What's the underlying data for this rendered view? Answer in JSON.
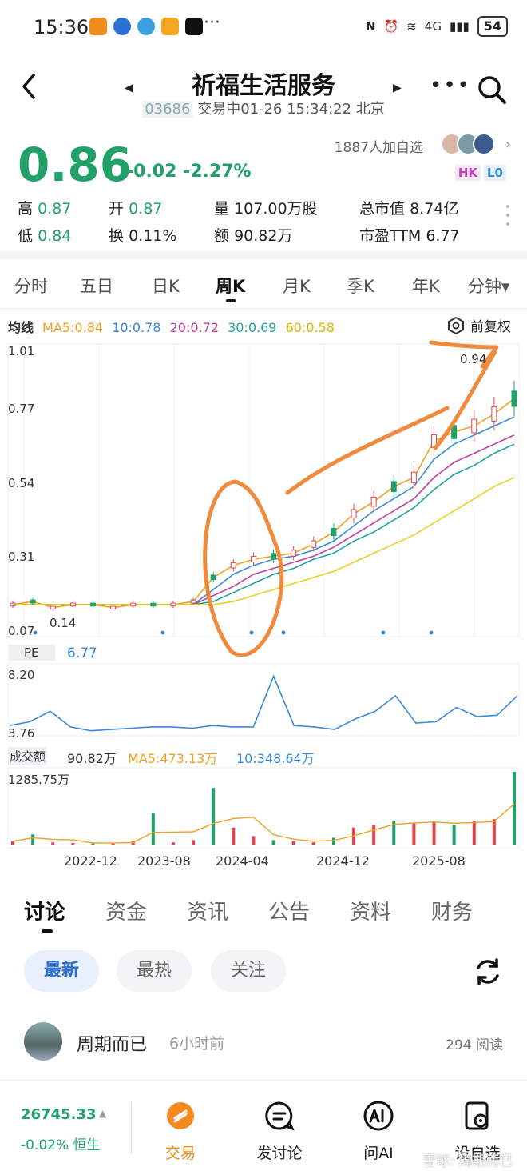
{
  "status_bar": {
    "time": "15:36",
    "network": "4G",
    "battery": "54"
  },
  "header": {
    "title": "祈福生活服务",
    "code": "03686",
    "status_text": "交易中01-26 15:34:22 北京"
  },
  "quote": {
    "price": "0.86",
    "change": "-0.02",
    "change_pct": "-2.27%",
    "watchers": "1887人加自选",
    "tags": [
      "HK",
      "L0"
    ],
    "stats": {
      "high_label": "高",
      "high": "0.87",
      "open_label": "开",
      "open": "0.87",
      "volume_label": "量",
      "volume": "107.00万股",
      "mcap_label": "总市值",
      "mcap": "8.74亿",
      "low_label": "低",
      "low": "0.84",
      "turnover_label": "换",
      "turnover": "0.11%",
      "amount_label": "额",
      "amount": "90.82万",
      "pe_label": "市盈TTM",
      "pe": "6.77"
    }
  },
  "kline_tabs": [
    "分时",
    "五日",
    "日K",
    "周K",
    "月K",
    "季K",
    "年K",
    "分钟▾"
  ],
  "active_kline_tab": "周K",
  "ma": {
    "label": "均线",
    "ma5": "MA5:0.84",
    "ma10": "10:0.78",
    "ma20": "20:0.72",
    "ma30": "30:0.69",
    "ma60": "60:0.58",
    "adjust_label": "前复权",
    "colors": {
      "ma5": "#f0a020",
      "ma10": "#3a8ad9",
      "ma20": "#c040a0",
      "ma30": "#20a0a0",
      "ma60": "#e8d020"
    }
  },
  "chart_data": [
    {
      "type": "candlestick-line",
      "yticks": [
        "1.01",
        "0.77",
        "0.54",
        "0.31",
        "0.07"
      ],
      "ylim": [
        0.07,
        1.01
      ],
      "annotations": {
        "high_label": "0.94",
        "low_label": "0.14"
      },
      "xticks": [
        "2022-12",
        "2023-08",
        "2024-04",
        "2024-12",
        "2025-08"
      ],
      "series": [
        {
          "name": "MA5",
          "values": [
            0.16,
            0.17,
            0.15,
            0.16,
            0.16,
            0.15,
            0.16,
            0.16,
            0.16,
            0.17,
            0.25,
            0.29,
            0.31,
            0.32,
            0.33,
            0.36,
            0.4,
            0.46,
            0.5,
            0.55,
            0.58,
            0.7,
            0.73,
            0.75,
            0.79,
            0.84
          ]
        },
        {
          "name": "10",
          "values": [
            0.16,
            0.16,
            0.16,
            0.16,
            0.16,
            0.16,
            0.16,
            0.16,
            0.16,
            0.16,
            0.21,
            0.26,
            0.29,
            0.31,
            0.32,
            0.34,
            0.37,
            0.42,
            0.47,
            0.51,
            0.55,
            0.64,
            0.69,
            0.72,
            0.75,
            0.78
          ]
        },
        {
          "name": "20",
          "values": [
            0.16,
            0.16,
            0.16,
            0.16,
            0.16,
            0.16,
            0.16,
            0.16,
            0.16,
            0.16,
            0.19,
            0.22,
            0.26,
            0.28,
            0.3,
            0.32,
            0.35,
            0.39,
            0.43,
            0.47,
            0.51,
            0.58,
            0.63,
            0.66,
            0.69,
            0.72
          ]
        },
        {
          "name": "30",
          "values": [
            0.16,
            0.16,
            0.16,
            0.16,
            0.16,
            0.16,
            0.16,
            0.16,
            0.16,
            0.16,
            0.17,
            0.2,
            0.23,
            0.26,
            0.28,
            0.31,
            0.33,
            0.37,
            0.4,
            0.44,
            0.48,
            0.54,
            0.59,
            0.62,
            0.66,
            0.69
          ]
        },
        {
          "name": "60",
          "values": [
            0.16,
            0.16,
            0.16,
            0.16,
            0.16,
            0.16,
            0.16,
            0.16,
            0.16,
            0.16,
            0.16,
            0.17,
            0.19,
            0.21,
            0.23,
            0.25,
            0.27,
            0.3,
            0.33,
            0.36,
            0.39,
            0.43,
            0.47,
            0.51,
            0.55,
            0.58
          ]
        }
      ]
    },
    {
      "type": "line",
      "label": "PE",
      "value_label": "6.77",
      "yticks": [
        "8.20",
        "3.76"
      ],
      "ylim": [
        3.76,
        8.2
      ],
      "values": [
        4.3,
        4.6,
        5.4,
        4.2,
        3.9,
        4.0,
        4.1,
        4.2,
        4.2,
        4.1,
        4.3,
        4.2,
        4.2,
        8.1,
        4.3,
        4.2,
        4.0,
        4.8,
        5.4,
        6.6,
        4.5,
        4.6,
        5.7,
        5.0,
        5.1,
        6.6
      ]
    },
    {
      "type": "bar",
      "label": "成交额",
      "value": "90.82万",
      "ma5": "MA5:473.13万",
      "ma10": "10:348.64万",
      "ytick": "1285.75万",
      "ylim": [
        0,
        1285.75
      ],
      "values": [
        60,
        180,
        40,
        30,
        20,
        30,
        60,
        560,
        40,
        80,
        1000,
        300,
        150,
        80,
        60,
        40,
        120,
        300,
        350,
        420,
        380,
        400,
        350,
        420,
        450,
        1285
      ]
    }
  ],
  "discussion_tabs": [
    "讨论",
    "资金",
    "资讯",
    "公告",
    "资料",
    "财务"
  ],
  "filters": [
    "最新",
    "最热",
    "关注"
  ],
  "post": {
    "user": "周期而已",
    "time": "6小时前",
    "reads": "294 阅读"
  },
  "bottom": {
    "index_value": "26745.33",
    "index_change": "-0.02% 恒生",
    "nav": [
      "交易",
      "发讨论",
      "问AI",
      "设自选"
    ]
  },
  "watermark": "雪球: 周期而已"
}
